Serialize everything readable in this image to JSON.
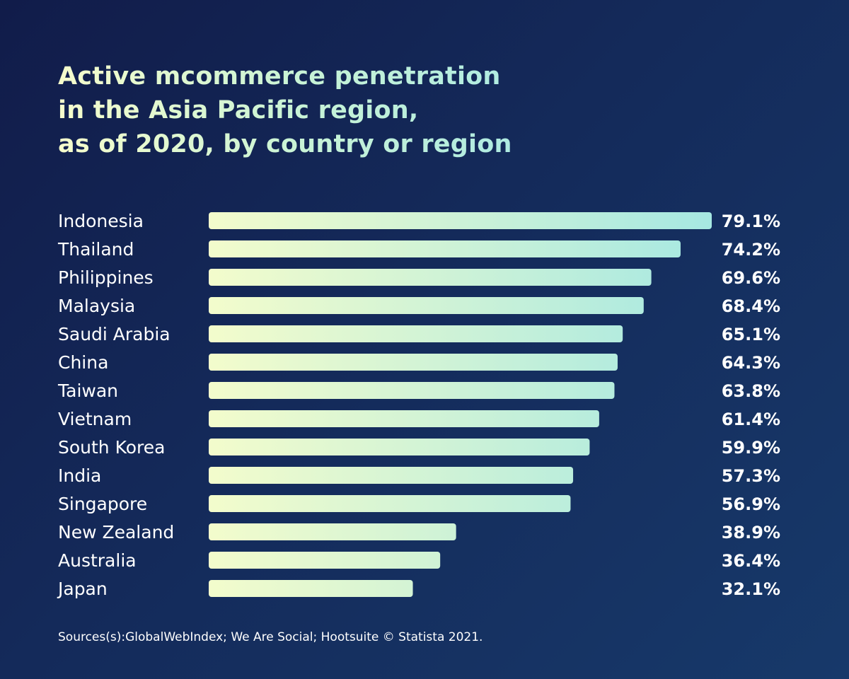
{
  "title_lines": [
    "Active mcommerce penetration",
    "in the Asia Pacific region,",
    "as of 2020, by country or region"
  ],
  "source": "Sources(s):GlobalWebIndex; We Are Social; Hootsuite © Statista 2021.",
  "colors": {
    "background_start": "#111c4a",
    "background_end": "#17396a",
    "bar_start": "#f3fccc",
    "bar_end": "#a6e8e2",
    "text": "#ffffff"
  },
  "chart_data": {
    "type": "bar",
    "orientation": "horizontal",
    "title": "Active mcommerce penetration in the Asia Pacific region, as of 2020, by country or region",
    "categories": [
      "Indonesia",
      "Thailand",
      "Philippines",
      "Malaysia",
      "Saudi Arabia",
      "China",
      "Taiwan",
      "Vietnam",
      "South Korea",
      "India",
      "Singapore",
      "New Zealand",
      "Australia",
      "Japan"
    ],
    "values": [
      79.1,
      74.2,
      69.6,
      68.4,
      65.1,
      64.3,
      63.8,
      61.4,
      59.9,
      57.3,
      56.9,
      38.9,
      36.4,
      32.1
    ],
    "value_labels": [
      "79.1%",
      "74.2%",
      "69.6%",
      "68.4%",
      "65.1%",
      "64.3%",
      "63.8%",
      "61.4%",
      "59.9%",
      "57.3%",
      "56.9%",
      "38.9%",
      "36.4%",
      "32.1%"
    ],
    "unit": "%",
    "xlim": [
      0,
      79.1
    ],
    "grid": false,
    "legend": "none"
  }
}
